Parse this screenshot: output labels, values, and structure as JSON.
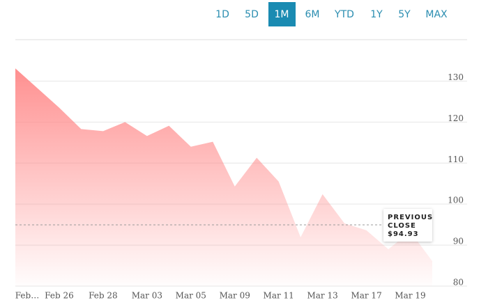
{
  "ranges": [
    "1D",
    "5D",
    "1M",
    "6M",
    "YTD",
    "1Y",
    "5Y",
    "MAX"
  ],
  "selected_range": "1M",
  "chart_data": {
    "type": "area",
    "categories": [
      "Feb…",
      null,
      "Feb 26",
      null,
      "Feb 28",
      null,
      "Mar 03",
      null,
      "Mar 05",
      null,
      "Mar 09",
      null,
      "Mar 11",
      null,
      "Mar 13",
      null,
      "Mar 17",
      null,
      "Mar 19",
      null
    ],
    "values": [
      133.1,
      128.3,
      123.5,
      118.3,
      117.8,
      120.0,
      116.6,
      119.1,
      114.0,
      115.2,
      104.3,
      111.3,
      105.5,
      91.9,
      102.4,
      95.3,
      93.6,
      89.0,
      93.3,
      86.1
    ],
    "color": "#ff8a8a",
    "ylim": [
      80,
      135
    ],
    "yticks": [
      80,
      90,
      100,
      110,
      120,
      130
    ],
    "grid": true,
    "previous_close": {
      "value": 94.93,
      "label": "$94.93"
    },
    "previous_close_title": "PREVIOUS CLOSE"
  }
}
